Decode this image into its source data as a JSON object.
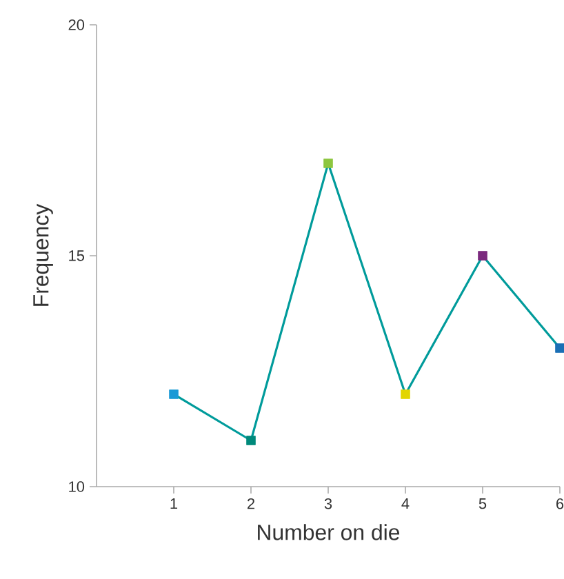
{
  "chart_data": {
    "type": "line",
    "xlabel": "Number on die",
    "ylabel": "Frequency",
    "x": [
      1,
      2,
      3,
      4,
      5,
      6
    ],
    "series": [
      {
        "color": "#009b9b",
        "values": [
          12,
          11,
          17,
          12,
          15,
          13
        ],
        "colors": [
          "#1a9ad6",
          "#00897b",
          "#8dc63f",
          "#e2d500",
          "#7b2a7e",
          "#1a6fb5"
        ]
      }
    ],
    "xlim": [
      0,
      6
    ],
    "xticks": [
      1,
      2,
      3,
      4,
      5,
      6
    ],
    "ylim": [
      10,
      20
    ],
    "yticks": [
      10,
      15,
      20
    ],
    "marker": "square",
    "line_style": "solid"
  }
}
